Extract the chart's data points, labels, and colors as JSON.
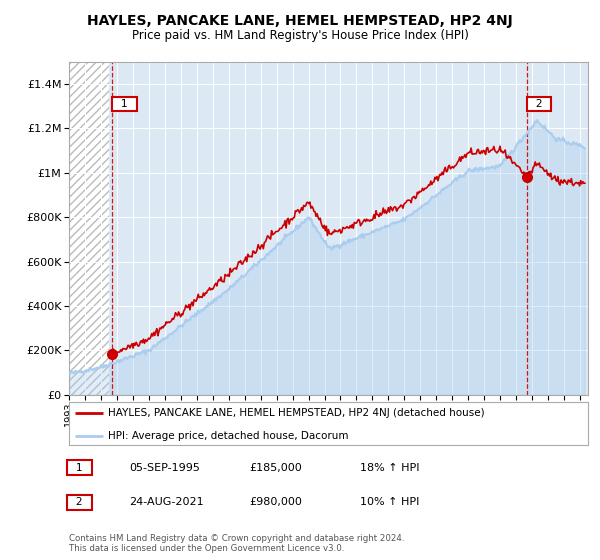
{
  "title": "HAYLES, PANCAKE LANE, HEMEL HEMPSTEAD, HP2 4NJ",
  "subtitle": "Price paid vs. HM Land Registry's House Price Index (HPI)",
  "legend_line1": "HAYLES, PANCAKE LANE, HEMEL HEMPSTEAD, HP2 4NJ (detached house)",
  "legend_line2": "HPI: Average price, detached house, Dacorum",
  "annotation1_label": "1",
  "annotation1_date": "05-SEP-1995",
  "annotation1_price": "£185,000",
  "annotation1_hpi": "18% ↑ HPI",
  "annotation2_label": "2",
  "annotation2_date": "24-AUG-2021",
  "annotation2_price": "£980,000",
  "annotation2_hpi": "10% ↑ HPI",
  "footnote": "Contains HM Land Registry data © Crown copyright and database right 2024.\nThis data is licensed under the Open Government Licence v3.0.",
  "bg_color": "#dce9f5",
  "hatch_color": "#bbbbbb",
  "line_color_red": "#cc0000",
  "line_color_blue": "#aaccee",
  "point1_x": 1995.67,
  "point1_y": 185000,
  "point2_x": 2021.65,
  "point2_y": 980000,
  "ylim_max": 1500000,
  "yticks": [
    0,
    200000,
    400000,
    600000,
    800000,
    1000000,
    1200000,
    1400000
  ],
  "xlim_min": 1993,
  "xlim_max": 2025.5,
  "xticks": [
    1993,
    1994,
    1995,
    1996,
    1997,
    1998,
    1999,
    2000,
    2001,
    2002,
    2003,
    2004,
    2005,
    2006,
    2007,
    2008,
    2009,
    2010,
    2011,
    2012,
    2013,
    2014,
    2015,
    2016,
    2017,
    2018,
    2019,
    2020,
    2021,
    2022,
    2023,
    2024,
    2025
  ]
}
